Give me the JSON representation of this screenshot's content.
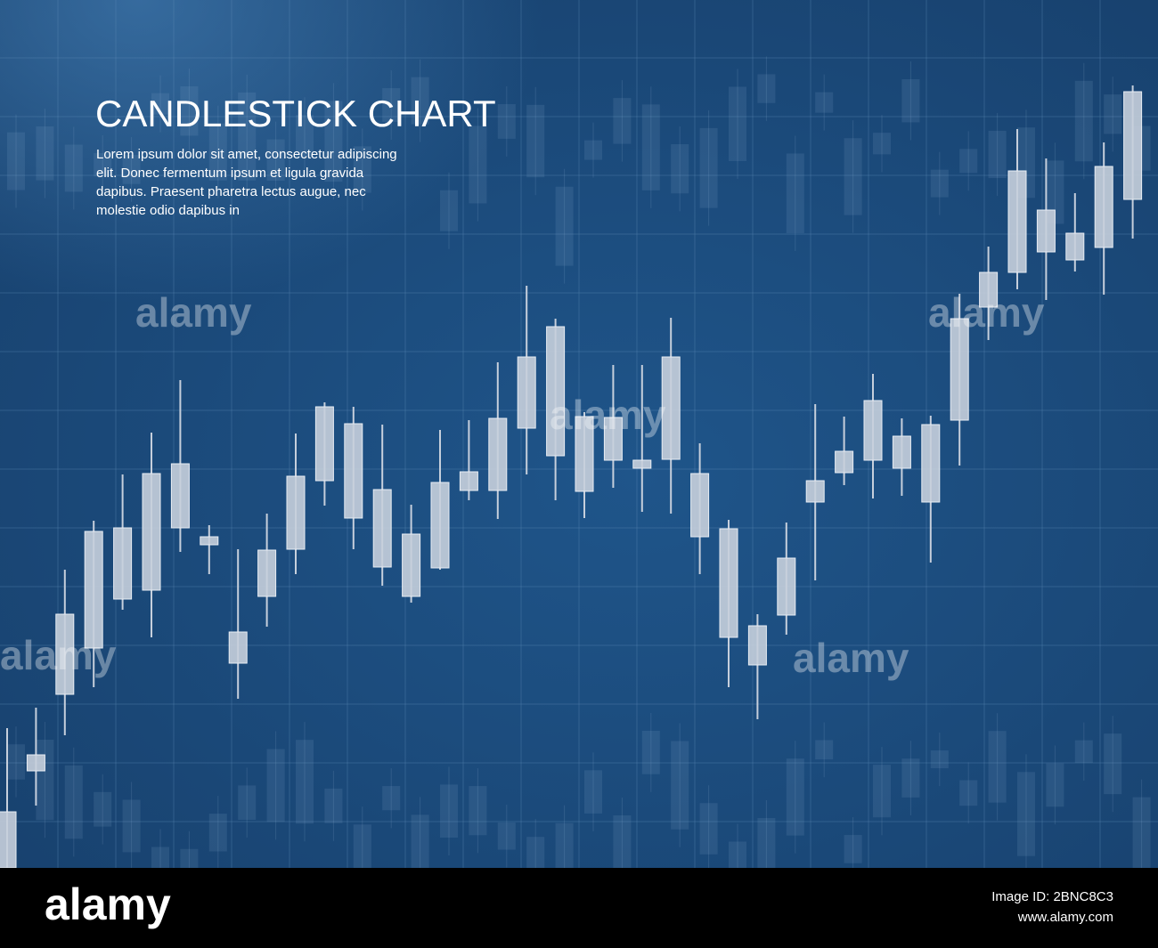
{
  "chart_data": {
    "type": "candlestick",
    "title": "CANDLESTICK CHART",
    "subtitle": [
      "Lorem ipsum dolor sit amet, consectetur adipiscing",
      "elit. Donec fermentum ipsum et ligula gravida",
      "dapibus. Praesent pharetra lectus augue, nec",
      "molestie odio dapibus in"
    ],
    "open": [
      0,
      109,
      195,
      247,
      302,
      312,
      382,
      363,
      230,
      305,
      358,
      435,
      393,
      338,
      305,
      337,
      424,
      424,
      494,
      463,
      423,
      458,
      449,
      459,
      372,
      259,
      228,
      284,
      411,
      444,
      458,
      449,
      411,
      503,
      630,
      669,
      692,
      683,
      697,
      751
    ],
    "high": [
      157,
      180,
      335,
      390,
      442,
      489,
      548,
      385,
      358,
      398,
      488,
      523,
      518,
      498,
      408,
      492,
      503,
      568,
      654,
      617,
      512,
      565,
      565,
      618,
      477,
      391,
      285,
      388,
      521,
      507,
      555,
      505,
      508,
      645,
      698,
      830,
      797,
      758,
      815,
      879
    ],
    "low": [
      0,
      70,
      149,
      203,
      290,
      259,
      355,
      330,
      190,
      271,
      330,
      407,
      358,
      317,
      298,
      335,
      413,
      392,
      442,
      413,
      393,
      427,
      400,
      398,
      330,
      203,
      167,
      262,
      323,
      430,
      415,
      418,
      343,
      452,
      593,
      650,
      638,
      670,
      644,
      707
    ],
    "close": [
      63,
      127,
      285,
      378,
      382,
      443,
      454,
      372,
      265,
      357,
      440,
      518,
      499,
      425,
      375,
      433,
      445,
      505,
      574,
      608,
      507,
      506,
      458,
      574,
      443,
      381,
      272,
      348,
      435,
      468,
      525,
      485,
      498,
      617,
      669,
      783,
      739,
      713,
      788,
      872
    ],
    "color": "#c6cfdc",
    "ylim": [
      0,
      975
    ]
  },
  "watermark": "alamy",
  "footer": {
    "logo": "alamy",
    "image_id": "Image ID: 2BNC8C3",
    "url": "www.alamy.com"
  }
}
